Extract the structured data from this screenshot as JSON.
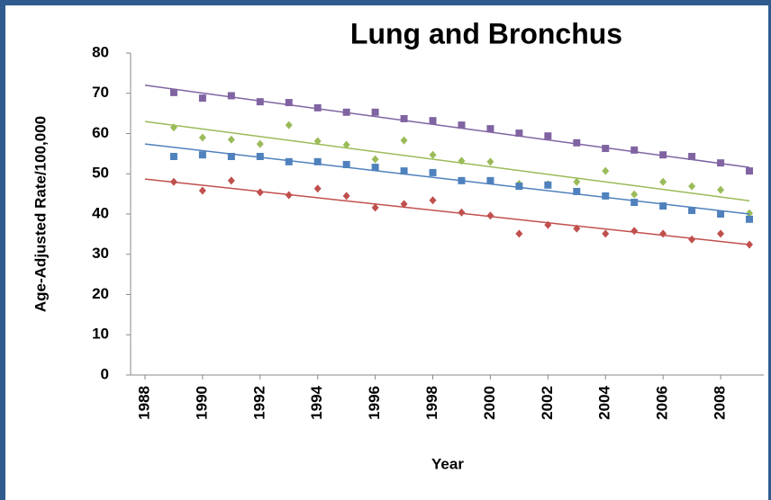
{
  "chart_data": {
    "type": "scatter",
    "title": "Lung and Bronchus",
    "xlabel": "Year",
    "ylabel": "Age-Adjusted Rate/100,000",
    "x": [
      1989,
      1990,
      1991,
      1992,
      1993,
      1994,
      1995,
      1996,
      1997,
      1998,
      1999,
      2000,
      2001,
      2002,
      2003,
      2004,
      2005,
      2006,
      2007,
      2008,
      2009
    ],
    "xlim": [
      1987.5,
      2009.5
    ],
    "xticks": [
      1988,
      1990,
      1992,
      1994,
      1996,
      1998,
      2000,
      2002,
      2004,
      2006,
      2008
    ],
    "ylim": [
      0,
      80
    ],
    "yticks": [
      0,
      10,
      20,
      30,
      40,
      50,
      60,
      70,
      80
    ],
    "trend_x": [
      1988,
      2009
    ],
    "series": [
      {
        "color": "#8064a2",
        "marker": "square",
        "values": [
          70.2,
          68.8,
          69.4,
          67.9,
          67.7,
          66.4,
          65.3,
          65.3,
          63.7,
          63.2,
          62.1,
          61.2,
          60.1,
          59.4,
          57.7,
          56.3,
          55.9,
          54.7,
          54.3,
          52.7,
          50.7
        ],
        "trend": [
          72.0,
          51.6
        ]
      },
      {
        "color": "#9bbb59",
        "marker": "diamond",
        "values": [
          61.5,
          59.0,
          58.5,
          57.4,
          62.1,
          58.1,
          57.2,
          53.6,
          58.3,
          54.7,
          53.2,
          53.0,
          47.5,
          47.4,
          48.0,
          50.7,
          44.9,
          48.0,
          46.9,
          46.0,
          40.2
        ],
        "trend": [
          63.0,
          43.3
        ]
      },
      {
        "color": "#4f81bd",
        "marker": "square",
        "values": [
          54.3,
          54.7,
          54.3,
          54.3,
          53.0,
          53.0,
          52.3,
          51.6,
          50.7,
          50.3,
          48.3,
          48.3,
          46.9,
          47.2,
          45.6,
          44.5,
          42.9,
          42.0,
          40.9,
          40.0,
          38.7
        ],
        "trend": [
          57.4,
          40.0
        ]
      },
      {
        "color": "#c0504d",
        "marker": "diamond",
        "values": [
          48.0,
          45.8,
          48.3,
          45.4,
          44.7,
          46.3,
          44.5,
          41.6,
          42.5,
          43.4,
          40.4,
          39.6,
          35.1,
          37.3,
          36.4,
          35.1,
          35.8,
          35.1,
          33.7,
          35.1,
          32.4
        ],
        "trend": [
          48.7,
          32.4
        ]
      }
    ]
  }
}
